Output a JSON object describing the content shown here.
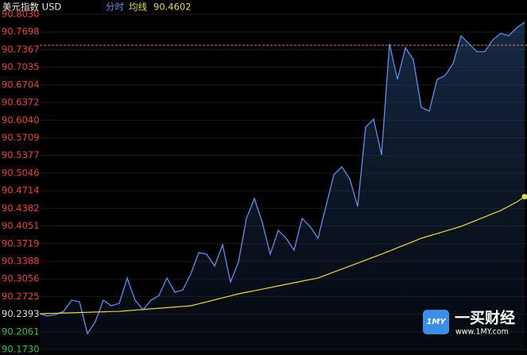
{
  "chart_data": {
    "type": "line",
    "title": "美元指数 USD",
    "ylim": [
      90.173,
      90.803
    ],
    "yticks": [
      {
        "value": 90.803,
        "label": "90.8030"
      },
      {
        "value": 90.7698,
        "label": "90.7698"
      },
      {
        "value": 90.7367,
        "label": "90.7367"
      },
      {
        "value": 90.7035,
        "label": "90.7035"
      },
      {
        "value": 90.6704,
        "label": "90.6704"
      },
      {
        "value": 90.6372,
        "label": "90.6372"
      },
      {
        "value": 90.604,
        "label": "90.6040"
      },
      {
        "value": 90.5709,
        "label": "90.5709"
      },
      {
        "value": 90.5377,
        "label": "90.5377"
      },
      {
        "value": 90.5046,
        "label": "90.5046"
      },
      {
        "value": 90.4714,
        "label": "90.4714"
      },
      {
        "value": 90.4382,
        "label": "90.4382"
      },
      {
        "value": 90.4051,
        "label": "90.4051"
      },
      {
        "value": 90.3719,
        "label": "90.3719"
      },
      {
        "value": 90.3388,
        "label": "90.3388"
      },
      {
        "value": 90.3056,
        "label": "90.3056"
      },
      {
        "value": 90.2725,
        "label": "90.2725"
      },
      {
        "value": 90.2393,
        "label": "90.2393"
      },
      {
        "value": 90.2061,
        "label": "90.2061"
      },
      {
        "value": 90.173,
        "label": "90.1730"
      }
    ],
    "ytick_colors": [
      "#e8453c",
      "#e8453c",
      "#e8453c",
      "#e8453c",
      "#e8453c",
      "#e8453c",
      "#e8453c",
      "#e8453c",
      "#e8453c",
      "#e8453c",
      "#e8453c",
      "#e8453c",
      "#e8453c",
      "#e8453c",
      "#e8453c",
      "#e8453c",
      "#e8453c",
      "#dddddd",
      "#3cc34a",
      "#3cc34a"
    ],
    "reference_line": {
      "value": 90.7448,
      "color": "#e0785a"
    },
    "series": [
      {
        "name": "分时",
        "color": "#5b8ff0",
        "values": [
          90.2401,
          90.2357,
          90.2387,
          90.2446,
          90.2655,
          90.2625,
          90.2028,
          90.2252,
          90.2655,
          90.2551,
          90.2596,
          90.3073,
          90.2655,
          90.2476,
          90.2655,
          90.2745,
          90.3073,
          90.2805,
          90.2849,
          90.3148,
          90.3551,
          90.3521,
          90.3297,
          90.37,
          90.2999,
          90.3372,
          90.4193,
          90.4566,
          90.4118,
          90.3521,
          90.3969,
          90.382,
          90.3596,
          90.4193,
          90.4044,
          90.382,
          90.4417,
          90.5014,
          90.5163,
          90.4939,
          90.4417,
          90.591,
          90.6059,
          90.5387,
          90.7478,
          90.6806,
          90.7403,
          90.7179,
          90.6283,
          90.6209,
          90.6806,
          90.688,
          90.7104,
          90.7627,
          90.7478,
          90.7328,
          90.7328,
          90.7552,
          90.7672,
          90.7627,
          90.7776,
          90.7881
        ]
      },
      {
        "name": "均线",
        "color": "#e8d84a",
        "values": [
          90.2401,
          90.2406,
          90.241,
          90.2415,
          90.2419,
          90.2424,
          90.2428,
          90.2433,
          90.2437,
          90.2442,
          90.2446,
          90.2458,
          90.247,
          90.2481,
          90.2493,
          90.2504,
          90.2516,
          90.2527,
          90.2539,
          90.2551,
          90.2588,
          90.2625,
          90.2663,
          90.27,
          90.2737,
          90.2775,
          90.2805,
          90.2834,
          90.2864,
          90.2894,
          90.2924,
          90.2954,
          90.2984,
          90.3014,
          90.3043,
          90.3073,
          90.3129,
          90.3185,
          90.3241,
          90.3297,
          90.3353,
          90.3409,
          90.3466,
          90.3521,
          90.3581,
          90.3641,
          90.37,
          90.376,
          90.382,
          90.3865,
          90.3909,
          90.3954,
          90.3999,
          90.4044,
          90.4103,
          90.4163,
          90.4223,
          90.4283,
          90.4342,
          90.4421,
          90.4502,
          90.4602
        ]
      }
    ],
    "watermark": {
      "logo": "1MY",
      "name": "一买财经",
      "url": "www.1MY.com"
    }
  }
}
